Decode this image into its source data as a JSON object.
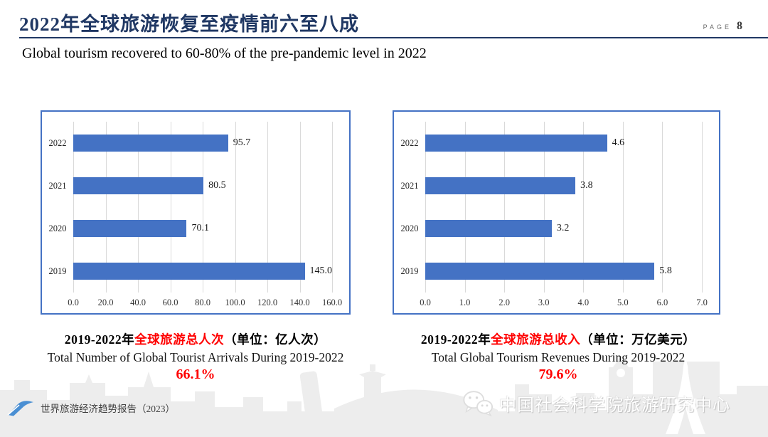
{
  "header": {
    "title": "2022年全球旅游恢复至疫情前六至八成",
    "page_label": "PAGE",
    "page_number": "8",
    "subtitle": "Global tourism recovered to 60-80% of the pre-pandemic level in 2022"
  },
  "chart_data": [
    {
      "type": "bar",
      "orientation": "horizontal",
      "categories": [
        "2022",
        "2021",
        "2020",
        "2019"
      ],
      "values": [
        95.7,
        80.5,
        70.1,
        145.0
      ],
      "value_labels": [
        "95.7",
        "80.5",
        "70.1",
        "145.0"
      ],
      "xlim": [
        0,
        160
      ],
      "xtick_labels": [
        "0.0",
        "20.0",
        "40.0",
        "60.0",
        "80.0",
        "100.0",
        "120.0",
        "140.0",
        "160.0"
      ],
      "grid": true,
      "legend": false,
      "bar_color": "#4472C4",
      "border_color": "#4472C4",
      "caption": {
        "zh_prefix": "2019-2022年",
        "zh_red": "全球旅游总人次",
        "zh_suffix": "（单位：亿人次）",
        "en": "Total Number of Global Tourist Arrivals During 2019-2022",
        "percent": "66.1%"
      }
    },
    {
      "type": "bar",
      "orientation": "horizontal",
      "categories": [
        "2022",
        "2021",
        "2020",
        "2019"
      ],
      "values": [
        4.6,
        3.8,
        3.2,
        5.8
      ],
      "value_labels": [
        "4.6",
        "3.8",
        "3.2",
        "5.8"
      ],
      "xlim": [
        0,
        7
      ],
      "xtick_labels": [
        "0.0",
        "1.0",
        "2.0",
        "3.0",
        "4.0",
        "5.0",
        "6.0",
        "7.0"
      ],
      "grid": true,
      "legend": false,
      "bar_color": "#4472C4",
      "border_color": "#4472C4",
      "caption": {
        "zh_prefix": "2019-2022年",
        "zh_red": "全球旅游总收入",
        "zh_suffix": "（单位：万亿美元）",
        "en": "Total Global Tourism Revenues During 2019-2022",
        "percent": "79.6%"
      }
    }
  ],
  "footer": {
    "left_text": "世界旅游经济趋势报告（2023）",
    "right_text": "中国社会科学院旅游研究中心"
  },
  "colors": {
    "title_navy": "#203864",
    "accent_red": "#ff0000",
    "bar_blue": "#4472C4",
    "grid_gray": "#d9d9d9",
    "skyline_gray": "#ededed"
  }
}
